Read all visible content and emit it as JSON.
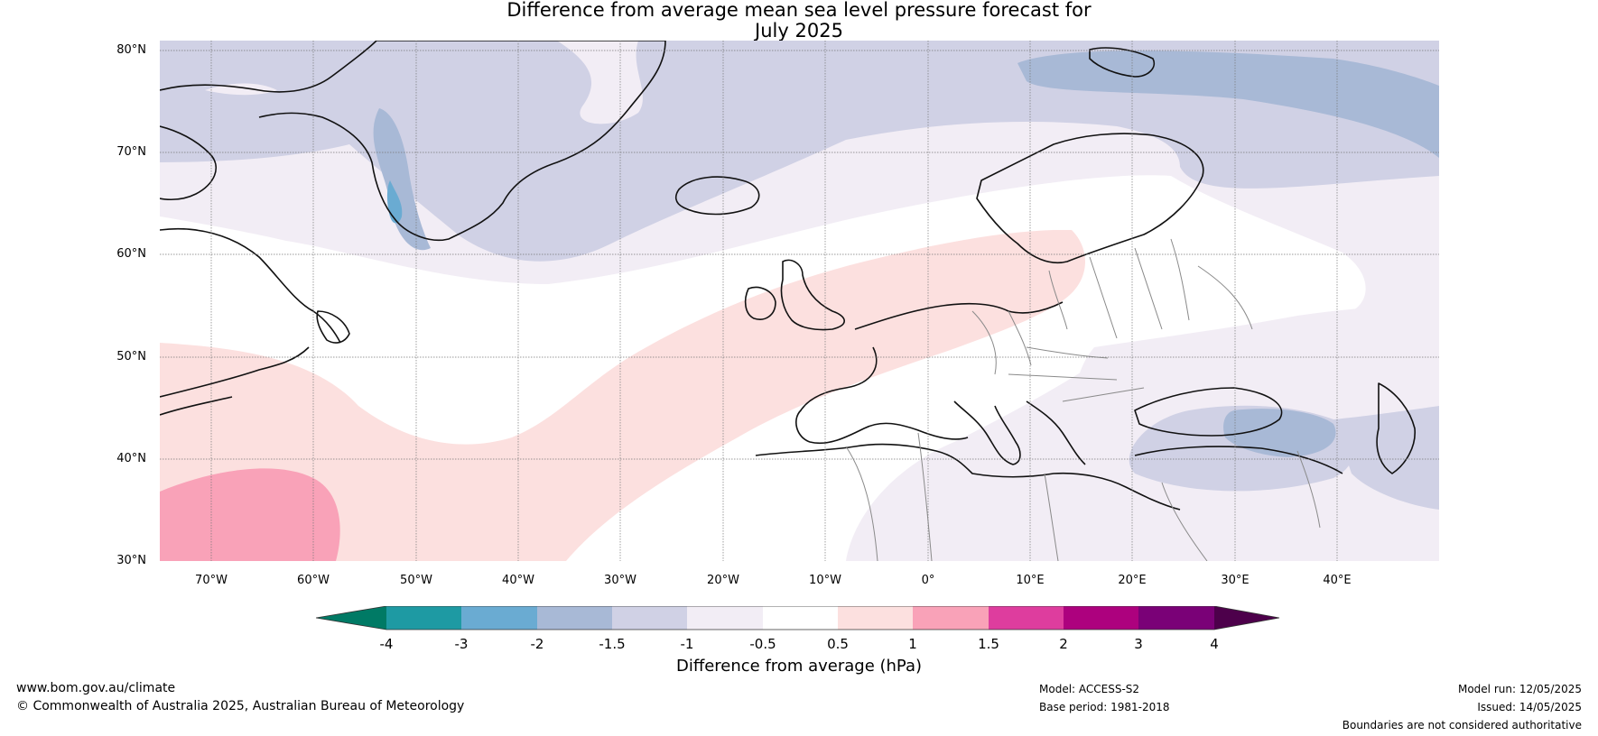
{
  "title": {
    "line1": "Difference from average mean sea level pressure forecast for",
    "line2": "July 2025"
  },
  "map": {
    "lat_labels": [
      "80°N",
      "70°N",
      "60°N",
      "50°N",
      "40°N",
      "30°N"
    ],
    "lon_labels": [
      "70°W",
      "60°W",
      "50°W",
      "40°W",
      "30°W",
      "20°W",
      "10°W",
      "0°",
      "10°E",
      "20°E",
      "30°E",
      "40°E"
    ],
    "lat_range": [
      30,
      80
    ],
    "lon_range": [
      -75,
      50
    ],
    "grid": true,
    "regions": [
      {
        "category": "-2 to -1.5",
        "area": "Greenland Sea and east of Svalbard",
        "color": "#a8b9d6"
      },
      {
        "category": "-1.5 to -1",
        "area": "Arctic, Greenland and Norwegian Sea",
        "color": "#d0d1e5"
      },
      {
        "category": "-1 to -0.5",
        "area": "North Atlantic 60–70°N and eastern Europe",
        "color": "#f2edf5"
      },
      {
        "category": "-0.5 to 0.5",
        "area": "Central North Atlantic and western Europe",
        "color": "#ffffff"
      },
      {
        "category": "0.5 to 1",
        "area": "Band from subtropical Atlantic to the British Isles",
        "color": "#fce0df"
      },
      {
        "category": "1 to 1.5",
        "area": "Western subtropical Atlantic near 30–38°N",
        "color": "#f9a2b8"
      }
    ]
  },
  "colorbar": {
    "ticks": [
      "-4",
      "-3",
      "-2",
      "-1.5",
      "-1",
      "-0.5",
      "0.5",
      "1",
      "1.5",
      "2",
      "3",
      "4"
    ],
    "colors": [
      "#007a65",
      "#1e9aa3",
      "#6aabd2",
      "#a8b9d6",
      "#d0d1e5",
      "#f2edf5",
      "#ffffff",
      "#fce0df",
      "#f9a2b8",
      "#de3d9e",
      "#ad017e",
      "#7a0177",
      "#4d004b"
    ],
    "label": "Difference from average (hPa)"
  },
  "footer": {
    "website": "www.bom.gov.au/climate",
    "copyright": "© Commonwealth of Australia 2025, Australian Bureau of Meteorology",
    "model": "Model: ACCESS-S2",
    "base_period": "Base period: 1981-2018",
    "model_run": "Model run: 12/05/2025",
    "issued": "Issued: 14/05/2025",
    "disclaimer": "Boundaries are not considered authoritative"
  }
}
